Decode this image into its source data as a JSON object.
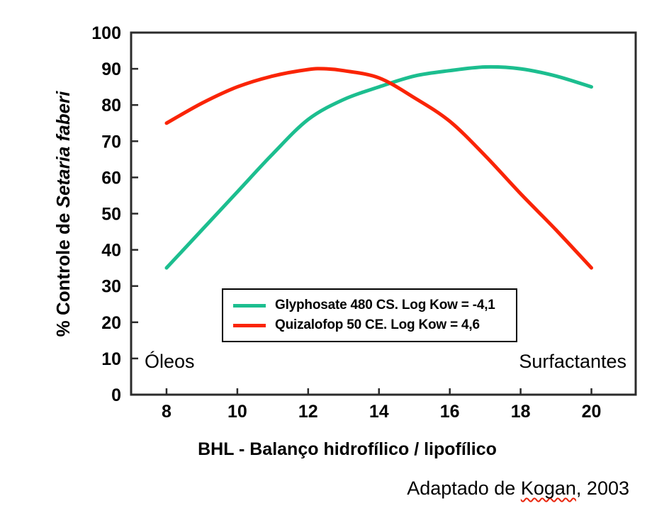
{
  "chart_data": {
    "type": "line",
    "title": "",
    "xlabel": "BHL - Balanço hidrofílico / lipofílico",
    "ylabel": "% Controle de Setaria faberi",
    "ylabel_parts": {
      "prefix": "% Controle de ",
      "italic_species": "Setaria faberi"
    },
    "xlim": [
      7,
      21.25
    ],
    "ylim": [
      0,
      100
    ],
    "xticks": [
      8,
      10,
      12,
      14,
      16,
      18,
      20
    ],
    "yticks": [
      0,
      10,
      20,
      30,
      40,
      50,
      60,
      70,
      80,
      90,
      100
    ],
    "grid": false,
    "legend_position": "inside-bottom-center",
    "series": [
      {
        "name": "Glyphosate 480 CS. Log Kow = -4,1",
        "color": "#1CBE8F",
        "x": [
          8,
          9,
          10,
          11,
          12,
          13,
          14,
          15,
          16,
          17,
          18,
          19,
          20
        ],
        "y": [
          35,
          45.5,
          56,
          66.5,
          76,
          81.5,
          85,
          88,
          89.5,
          90.5,
          90,
          88,
          85
        ]
      },
      {
        "name": "Quizalofop 50 CE. Log Kow = 4,6",
        "color": "#FA2405",
        "x": [
          8,
          9,
          10,
          11,
          12,
          12.5,
          13,
          14,
          15,
          16,
          17,
          18,
          19,
          20
        ],
        "y": [
          75,
          80.5,
          85,
          88,
          89.8,
          90,
          89.5,
          87.5,
          82,
          75.5,
          66,
          55.5,
          45.5,
          35
        ]
      }
    ],
    "annotations": [
      {
        "text": "Óleos",
        "position": "inside-bottom-left"
      },
      {
        "text": "Surfactantes",
        "position": "inside-bottom-right"
      }
    ],
    "caption": {
      "prefix": "Adaptado de ",
      "underlined": "Kogan",
      "suffix": ", 2003"
    },
    "axis_color": "#2b2b2b",
    "text_color": "#000000"
  }
}
